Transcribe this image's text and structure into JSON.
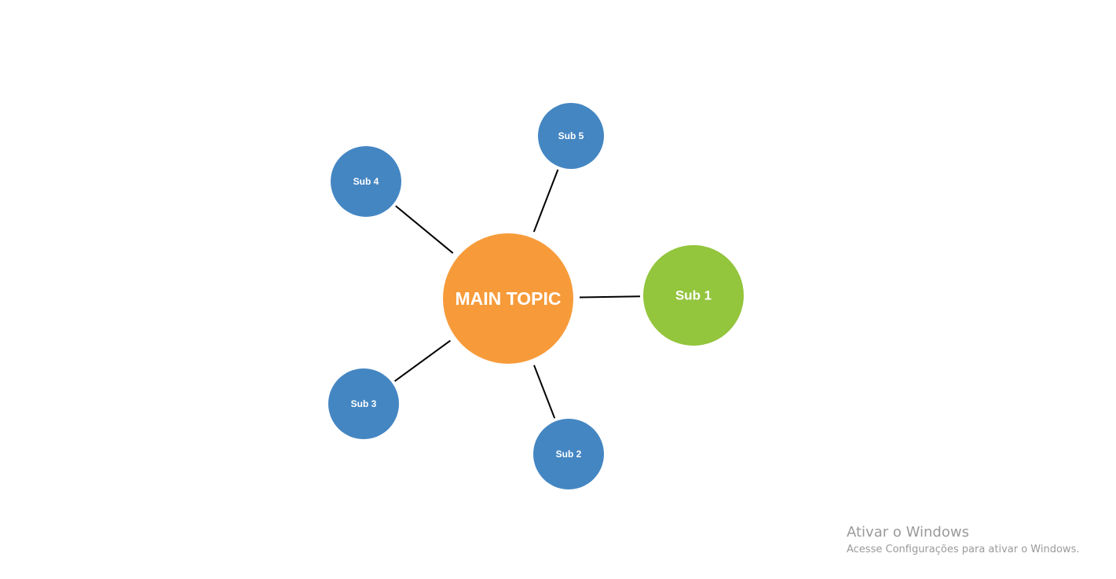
{
  "diagram": {
    "type": "mind-map",
    "colors": {
      "main": "#f79b3a",
      "sub_primary": "#93c53d",
      "sub_secondary": "#4486c2",
      "connector": "#000000"
    },
    "center": {
      "id": "main",
      "label": "MAIN TOPIC",
      "color": "#f79b3a"
    },
    "branches": [
      {
        "id": "sub1",
        "label": "Sub 1",
        "color": "#93c53d"
      },
      {
        "id": "sub2",
        "label": "Sub 2",
        "color": "#4486c2"
      },
      {
        "id": "sub3",
        "label": "Sub 3",
        "color": "#4486c2"
      },
      {
        "id": "sub4",
        "label": "Sub 4",
        "color": "#4486c2"
      },
      {
        "id": "sub5",
        "label": "Sub 5",
        "color": "#4486c2"
      }
    ]
  },
  "watermark": {
    "title": "Ativar o Windows",
    "subtitle": "Acesse Configurações para ativar o Windows."
  }
}
